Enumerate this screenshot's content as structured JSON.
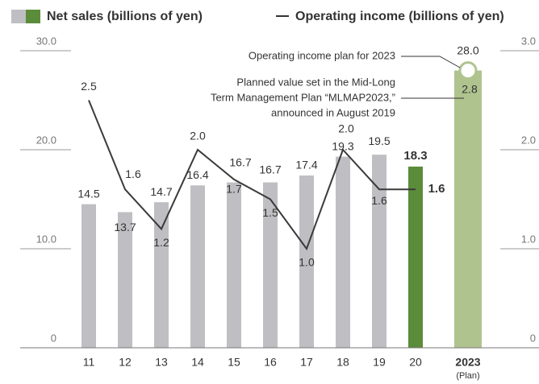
{
  "chart_data": {
    "type": "bar-line",
    "categories": [
      "11",
      "12",
      "13",
      "14",
      "15",
      "16",
      "17",
      "18",
      "19",
      "20",
      "2023"
    ],
    "category_note": "(Plan)",
    "series": [
      {
        "name": "Net sales (billions of yen)",
        "type": "bar",
        "colors": [
          "#bfbfc3",
          "#bfbfc3",
          "#bfbfc3",
          "#bfbfc3",
          "#bfbfc3",
          "#bfbfc3",
          "#bfbfc3",
          "#bfbfc3",
          "#bfbfc3",
          "#5b8c3a",
          "#afc38f"
        ],
        "values": [
          14.5,
          13.7,
          14.7,
          16.4,
          16.7,
          16.7,
          17.4,
          19.3,
          19.5,
          18.3,
          28.0
        ],
        "value_labels": [
          "14.5",
          "13.7",
          "14.7",
          "16.4",
          "16.7",
          "16.7",
          "17.4",
          "19.3",
          "19.5",
          "18.3",
          "28.0"
        ]
      },
      {
        "name": "Operating income (billions of yen)",
        "type": "line",
        "axis": "y2",
        "color": "#3a3a3a",
        "values": [
          2.5,
          1.6,
          1.2,
          2.0,
          1.7,
          1.5,
          1.0,
          2.0,
          1.6,
          1.6,
          null
        ],
        "value_labels": [
          "2.5",
          "1.6",
          "1.2",
          "2.0",
          "1.7",
          "1.5",
          "1.0",
          "2.0",
          "1.6",
          "1.6",
          null
        ]
      }
    ],
    "plan_point": {
      "label": "Operating income plan for 2023",
      "value": 2.8,
      "value_label": "2.8"
    },
    "annotation": [
      "Planned value set in the Mid-Long",
      "Term Management Plan “MLMAP2023,”",
      "announced in August 2019"
    ],
    "ylim": [
      0,
      30
    ],
    "yticks": [
      0,
      {
        "value": 10,
        "label": "10.0"
      },
      {
        "value": 20,
        "label": "20.0"
      },
      {
        "value": 30,
        "label": "30.0"
      }
    ],
    "y2lim": [
      0,
      3
    ],
    "y2ticks": [
      0,
      {
        "value": 1,
        "label": "1.0"
      },
      {
        "value": 2,
        "label": "2.0"
      },
      {
        "value": 3,
        "label": "3.0"
      }
    ]
  }
}
